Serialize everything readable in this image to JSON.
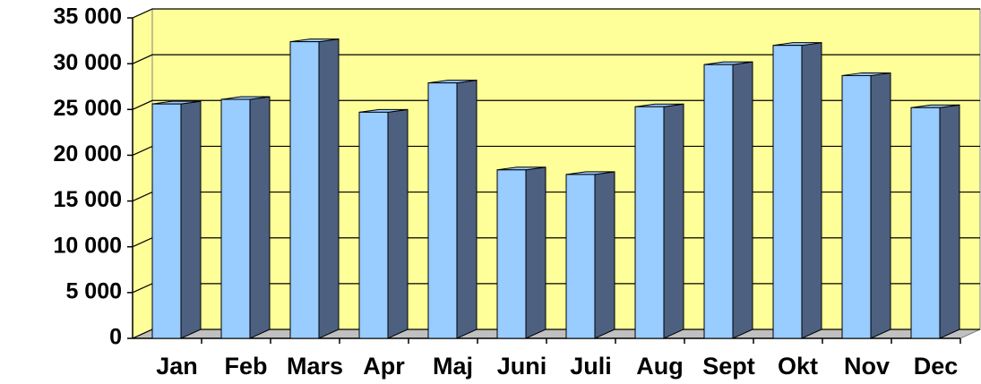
{
  "chart_data": {
    "type": "bar3d",
    "categories": [
      "Jan",
      "Feb",
      "Mars",
      "Apr",
      "Maj",
      "Juni",
      "Juli",
      "Aug",
      "Sept",
      "Okt",
      "Nov",
      "Dec"
    ],
    "values": [
      25600,
      26100,
      32400,
      24700,
      27900,
      18400,
      17900,
      25300,
      29900,
      32000,
      28700,
      25200
    ],
    "color": "#99ccff",
    "side_color": "#4d6080",
    "wall_color": "#ffff99",
    "ylim": [
      0,
      35000
    ],
    "yticks": [
      {
        "value": 0,
        "label": "0"
      },
      {
        "value": 5000,
        "label": "5 000"
      },
      {
        "value": 10000,
        "label": "10 000"
      },
      {
        "value": 15000,
        "label": "15 000"
      },
      {
        "value": 20000,
        "label": "20 000"
      },
      {
        "value": 25000,
        "label": "25 000"
      },
      {
        "value": 30000,
        "label": "30 000"
      },
      {
        "value": 35000,
        "label": "35 000"
      }
    ],
    "grid": true
  }
}
